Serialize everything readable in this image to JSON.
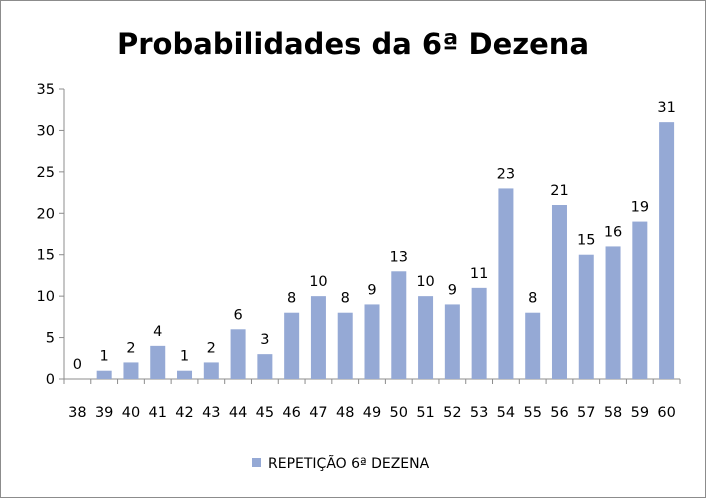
{
  "chart_data": {
    "type": "bar",
    "title": "Probabilidades da 6ª Dezena",
    "categories": [
      "38",
      "39",
      "40",
      "41",
      "42",
      "43",
      "44",
      "45",
      "46",
      "47",
      "48",
      "49",
      "50",
      "51",
      "52",
      "53",
      "54",
      "55",
      "56",
      "57",
      "58",
      "59",
      "60"
    ],
    "series": [
      {
        "name": "REPETIÇÃO 6ª DEZENA",
        "values": [
          0,
          1,
          2,
          4,
          1,
          2,
          6,
          3,
          8,
          10,
          8,
          9,
          13,
          10,
          9,
          11,
          23,
          8,
          21,
          15,
          16,
          19,
          31
        ],
        "color": "#95a9d5"
      }
    ],
    "ylim": [
      0,
      35
    ],
    "yticks": [
      0,
      5,
      10,
      15,
      20,
      25,
      30,
      35
    ],
    "grid": false,
    "data_labels": true,
    "legend_position": "bottom"
  }
}
